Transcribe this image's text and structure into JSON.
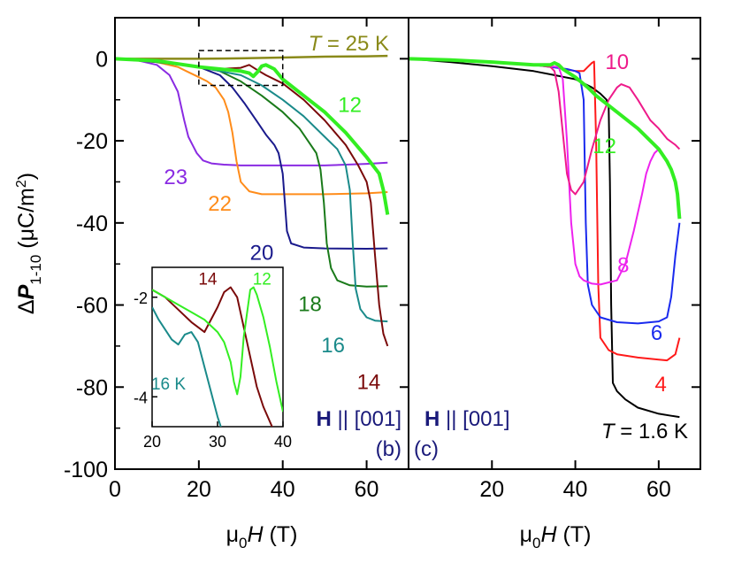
{
  "chart_data": [
    {
      "type": "line",
      "panel_label": "(b)",
      "field_label": "H || [001]",
      "temperature_label": "T = 25 K",
      "xlim": [
        0,
        70
      ],
      "ylim": [
        -100,
        10
      ],
      "xticks": [
        "0",
        "20",
        "40",
        "60"
      ],
      "yticks": [
        "0",
        "-20",
        "-40",
        "-60",
        "-80",
        "-100"
      ],
      "series": [
        {
          "name": "T = 25 K",
          "color": "#8a8a1a",
          "width": 2.5,
          "x": [
            0,
            10,
            20,
            30,
            40,
            50,
            60,
            65
          ],
          "y": [
            0,
            0,
            0,
            0.1,
            0.3,
            0.5,
            0.6,
            0.7
          ]
        },
        {
          "name": "23",
          "color": "#8a2be2",
          "width": 2,
          "x": [
            0,
            5,
            10,
            13,
            15,
            16.5,
            17.5,
            18.5,
            19.5,
            21,
            23,
            26,
            30,
            40,
            50,
            60,
            65
          ],
          "y": [
            0,
            -0.3,
            -1.5,
            -4,
            -8,
            -15,
            -19,
            -21,
            -23,
            -24.8,
            -25.5,
            -25.8,
            -26,
            -26,
            -26,
            -25.6,
            -25.3
          ]
        },
        {
          "name": "22",
          "color": "#ff8c1a",
          "width": 2,
          "x": [
            0,
            10,
            15,
            17,
            20,
            22,
            24,
            26,
            27,
            28,
            29,
            30,
            32,
            35,
            40,
            50,
            60,
            65
          ],
          "y": [
            0,
            -0.8,
            -2,
            -3,
            -4.5,
            -5.5,
            -7,
            -10,
            -13,
            -18,
            -25,
            -30,
            -32.3,
            -33,
            -33,
            -33,
            -32.8,
            -32.5
          ]
        },
        {
          "name": "20",
          "color": "#1a1a8c",
          "width": 2,
          "x": [
            0,
            10,
            20,
            25,
            28,
            31,
            34,
            36,
            38,
            39,
            40,
            40.5,
            41,
            42,
            45,
            50,
            60,
            65
          ],
          "y": [
            0,
            -0.8,
            -2,
            -4,
            -7,
            -11,
            -15.5,
            -18.5,
            -21,
            -23,
            -28,
            -35,
            -42,
            -45,
            -46,
            -46.2,
            -46.3,
            -46.2
          ]
        },
        {
          "name": "18",
          "color": "#1a7a1a",
          "width": 2,
          "x": [
            0,
            10,
            20,
            25,
            30,
            35,
            40,
            44,
            46,
            48,
            49,
            49.8,
            50.5,
            51.5,
            53,
            56,
            60,
            65
          ],
          "y": [
            0,
            -0.8,
            -2,
            -3,
            -5.5,
            -9,
            -13,
            -17,
            -20,
            -23,
            -27,
            -35,
            -45,
            -51,
            -54,
            -55.2,
            -55.5,
            -55.4
          ]
        },
        {
          "name": "16",
          "color": "#1a8a8a",
          "width": 2,
          "x": [
            0,
            10,
            20,
            25,
            30,
            35,
            40,
            45,
            50,
            53,
            55,
            56,
            56.7,
            57.4,
            58.5,
            60,
            62,
            65
          ],
          "y": [
            0,
            -0.5,
            -2,
            -3,
            -4,
            -6.5,
            -10,
            -14,
            -19,
            -22,
            -26,
            -32,
            -45,
            -56,
            -61,
            -63,
            -63.8,
            -64
          ]
        },
        {
          "name": "14",
          "color": "#7a0a0a",
          "width": 2,
          "x": [
            0,
            10,
            20,
            25,
            30,
            32,
            34,
            36,
            40,
            45,
            50,
            55,
            58,
            60,
            61,
            62,
            63,
            64,
            65
          ],
          "y": [
            0,
            -0.5,
            -2,
            -2.5,
            -2.2,
            -1.5,
            -2.8,
            -4,
            -6,
            -10,
            -15,
            -21,
            -26,
            -30,
            -35,
            -48,
            -60,
            -67,
            -70
          ]
        },
        {
          "name": "12",
          "color": "#33ee22",
          "width": 4,
          "x": [
            0,
            10,
            20,
            25,
            30,
            32,
            33,
            34,
            35,
            36,
            38,
            40,
            45,
            50,
            55,
            60,
            63,
            64,
            65
          ],
          "y": [
            0,
            -0.5,
            -2,
            -2.5,
            -3,
            -3.5,
            -4.3,
            -3.2,
            -1.8,
            -1.5,
            -2.5,
            -5,
            -9,
            -13,
            -18,
            -24,
            -28,
            -32,
            -38
          ]
        }
      ],
      "curve_labels": [
        {
          "text": "12",
          "color": "#33ee22",
          "x": 56,
          "y": -13
        },
        {
          "text": "23",
          "color": "#8a2be2",
          "x": 14.5,
          "y": -30.5
        },
        {
          "text": "22",
          "color": "#ff8c1a",
          "x": 25,
          "y": -37
        },
        {
          "text": "20",
          "color": "#1a1a8c",
          "x": 35,
          "y": -49
        },
        {
          "text": "18",
          "color": "#1a7a1a",
          "x": 46.5,
          "y": -61.5
        },
        {
          "text": "16",
          "color": "#1a8a8a",
          "x": 52,
          "y": -71.5
        },
        {
          "text": "14",
          "color": "#7a0a0a",
          "x": 60.5,
          "y": -80.5
        }
      ],
      "zoom_box": {
        "x": [
          20,
          40
        ],
        "y": [
          -6.5,
          2
        ]
      },
      "inset": {
        "xlim": [
          20,
          40
        ],
        "ylim": [
          -4.6,
          -1.4
        ],
        "xticks": [
          "20",
          "30",
          "40"
        ],
        "yticks": [
          "-2",
          "-4"
        ],
        "series": [
          {
            "name": "14",
            "color": "#7a0a0a",
            "x": [
              20,
              22,
              24,
              26,
              28,
              30,
              31,
              32,
              33,
              34,
              35,
              36,
              37,
              38,
              39
            ],
            "y": [
              -1.85,
              -2.0,
              -2.25,
              -2.5,
              -2.7,
              -2.2,
              -1.9,
              -1.8,
              -2.0,
              -2.6,
              -3.2,
              -3.8,
              -4.2,
              -4.5,
              -4.8
            ]
          },
          {
            "name": "12",
            "color": "#33ee22",
            "x": [
              20,
              22,
              24,
              26,
              28,
              30,
              31,
              32,
              32.5,
              33,
              33.5,
              34,
              35,
              35.5,
              36,
              37,
              38,
              39,
              40
            ],
            "y": [
              -1.85,
              -2.0,
              -2.15,
              -2.3,
              -2.45,
              -2.7,
              -2.9,
              -3.3,
              -3.7,
              -3.95,
              -3.6,
              -2.8,
              -1.85,
              -1.8,
              -1.95,
              -2.4,
              -3.0,
              -3.7,
              -4.3
            ]
          },
          {
            "name": "16 K",
            "color": "#1a8a8a",
            "x": [
              20,
              21,
              22,
              23,
              24,
              25,
              26,
              27,
              28,
              29,
              30,
              31
            ],
            "y": [
              -2.2,
              -2.45,
              -2.65,
              -2.85,
              -2.95,
              -2.75,
              -2.7,
              -2.9,
              -3.4,
              -3.9,
              -4.4,
              -4.8
            ]
          }
        ],
        "curve_labels": [
          {
            "text": "14",
            "color": "#7a0a0a",
            "x": 28.5,
            "y": -1.75
          },
          {
            "text": "12",
            "color": "#33ee22",
            "x": 36.8,
            "y": -1.75
          },
          {
            "text": "16 K",
            "color": "#1a8a8a",
            "x": 22.5,
            "y": -3.85
          }
        ]
      }
    },
    {
      "type": "line",
      "panel_label": "(c)",
      "field_label": "H || [001]",
      "temperature_label": "T = 1.6 K",
      "xlim": [
        0,
        70
      ],
      "ylim": [
        -100,
        10
      ],
      "xticks": [
        "0",
        "20",
        "40",
        "60"
      ],
      "series": [
        {
          "name": "T = 1.6 K",
          "color": "#000000",
          "width": 2,
          "x": [
            0,
            10,
            20,
            30,
            35,
            40,
            44,
            46,
            47.5,
            48,
            48.3,
            48.6,
            49,
            50,
            52,
            55,
            60,
            63,
            65
          ],
          "y": [
            0,
            -0.8,
            -1.8,
            -3,
            -4,
            -5,
            -7,
            -8.5,
            -10,
            -12,
            -30,
            -60,
            -79,
            -81,
            -83,
            -85,
            -86.5,
            -87,
            -87.3
          ]
        },
        {
          "name": "4",
          "color": "#ff1a1a",
          "width": 2,
          "x": [
            0,
            10,
            20,
            30,
            35,
            40,
            42,
            43,
            44,
            44.5,
            45,
            45.5,
            46,
            48,
            50,
            55,
            60,
            62,
            64,
            65
          ],
          "y": [
            0,
            -0.3,
            -0.8,
            -1.5,
            -2,
            -3,
            -3,
            -2,
            -1,
            -0.7,
            -20,
            -55,
            -68,
            -71,
            -72,
            -72.8,
            -73.3,
            -73.5,
            -72,
            -68
          ]
        },
        {
          "name": "6",
          "color": "#1a2aee",
          "width": 2,
          "x": [
            0,
            10,
            20,
            30,
            38,
            40,
            41,
            42,
            42.5,
            43,
            44,
            46,
            50,
            55,
            60,
            62,
            63,
            64,
            65
          ],
          "y": [
            0,
            -0.3,
            -0.8,
            -1.5,
            -2.5,
            -3,
            -3.5,
            -10,
            -40,
            -55,
            -60,
            -63,
            -64.2,
            -64.5,
            -64,
            -63,
            -58,
            -48,
            -40
          ]
        },
        {
          "name": "8",
          "color": "#ee22ee",
          "width": 2,
          "x": [
            0,
            10,
            20,
            30,
            36,
            37,
            38,
            39,
            40,
            41,
            42,
            44,
            46,
            50,
            52,
            54,
            56,
            57,
            58,
            59,
            60
          ],
          "y": [
            0,
            -0.3,
            -0.8,
            -1.5,
            -2,
            -5,
            -20,
            -40,
            -50,
            -53,
            -54,
            -54.8,
            -55,
            -54,
            -50,
            -42,
            -33,
            -28,
            -25,
            -23,
            -22
          ]
        },
        {
          "name": "10",
          "color": "#ee1a8a",
          "width": 2,
          "x": [
            0,
            10,
            20,
            30,
            34,
            35,
            36,
            37,
            38,
            39,
            40,
            42,
            44,
            46,
            48,
            50,
            51,
            53,
            55,
            58,
            60,
            62,
            64,
            65
          ],
          "y": [
            0,
            -0.3,
            -0.8,
            -1.5,
            -2,
            -3,
            -8,
            -18,
            -28,
            -32,
            -33,
            -30,
            -22,
            -15,
            -10,
            -7,
            -6.2,
            -7,
            -10,
            -15,
            -17,
            -19.5,
            -21,
            -22
          ]
        },
        {
          "name": "12",
          "color": "#33ee22",
          "width": 4,
          "x": [
            0,
            10,
            20,
            30,
            34,
            35,
            36,
            37,
            40,
            43,
            45,
            50,
            55,
            60,
            62,
            63,
            64,
            64.5,
            65
          ],
          "y": [
            0,
            -0.3,
            -0.8,
            -1.5,
            -1.5,
            -1,
            -1.5,
            -2.5,
            -4.5,
            -7,
            -9,
            -13,
            -17,
            -22,
            -25,
            -27,
            -30,
            -33,
            -39
          ]
        }
      ],
      "curve_labels": [
        {
          "text": "10",
          "color": "#ee1a8a",
          "x": 50,
          "y": -2.5
        },
        {
          "text": "12",
          "color": "#33ee22",
          "x": 47,
          "y": -23
        },
        {
          "text": "8",
          "color": "#ee22ee",
          "x": 51.5,
          "y": -52
        },
        {
          "text": "6",
          "color": "#1a2aee",
          "x": 59.5,
          "y": -68.5
        },
        {
          "text": "4",
          "color": "#ff1a1a",
          "x": 60.5,
          "y": -81
        }
      ]
    }
  ],
  "y_axis_title": "ΔP1-10 (μC/m2)",
  "x_axis_title": "μ0H (T)"
}
